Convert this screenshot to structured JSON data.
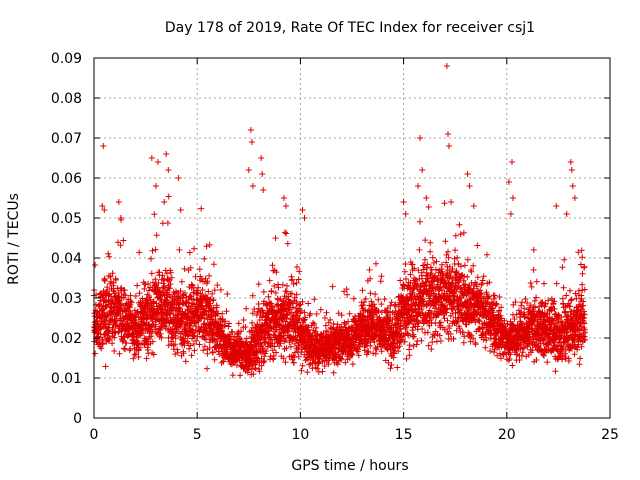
{
  "chart_data": {
    "type": "scatter",
    "title": "Day 178 of 2019, Rate Of TEC Index for receiver csj1",
    "xlabel": "GPS time / hours",
    "ylabel": "ROTI / TECUs",
    "xlim": [
      0,
      25
    ],
    "ylim": [
      0,
      0.09
    ],
    "xticks": [
      "0",
      "5",
      "10",
      "15",
      "20",
      "25"
    ],
    "yticks": [
      "0",
      "0.01",
      "0.02",
      "0.03",
      "0.04",
      "0.05",
      "0.06",
      "0.07",
      "0.08",
      "0.09"
    ],
    "grid": true,
    "marker": "plus",
    "series_color": "#e00000",
    "envelope": {
      "hours": [
        0,
        0.5,
        1,
        1.5,
        2,
        2.5,
        3,
        3.5,
        4,
        4.5,
        5,
        5.5,
        6,
        6.5,
        7,
        7.5,
        8,
        8.5,
        9,
        9.5,
        10,
        10.5,
        11,
        11.5,
        12,
        12.5,
        13,
        13.5,
        14,
        14.5,
        15,
        15.5,
        16,
        16.5,
        17,
        17.5,
        18,
        18.5,
        19,
        19.5,
        20,
        20.5,
        21,
        21.5,
        22,
        22.5,
        23,
        23.5,
        23.8
      ],
      "median_roti": [
        0.022,
        0.026,
        0.027,
        0.025,
        0.022,
        0.024,
        0.027,
        0.028,
        0.025,
        0.024,
        0.027,
        0.026,
        0.021,
        0.018,
        0.016,
        0.016,
        0.02,
        0.023,
        0.024,
        0.025,
        0.021,
        0.018,
        0.017,
        0.018,
        0.019,
        0.02,
        0.022,
        0.023,
        0.021,
        0.02,
        0.026,
        0.028,
        0.03,
        0.028,
        0.03,
        0.031,
        0.028,
        0.027,
        0.025,
        0.022,
        0.019,
        0.02,
        0.022,
        0.023,
        0.022,
        0.021,
        0.022,
        0.024,
        0.025
      ],
      "spread_roti": [
        0.008,
        0.012,
        0.012,
        0.01,
        0.009,
        0.01,
        0.012,
        0.012,
        0.011,
        0.011,
        0.012,
        0.011,
        0.008,
        0.006,
        0.005,
        0.006,
        0.01,
        0.012,
        0.012,
        0.012,
        0.009,
        0.007,
        0.006,
        0.006,
        0.007,
        0.007,
        0.008,
        0.009,
        0.008,
        0.008,
        0.011,
        0.012,
        0.012,
        0.012,
        0.012,
        0.012,
        0.011,
        0.01,
        0.009,
        0.008,
        0.006,
        0.007,
        0.009,
        0.009,
        0.009,
        0.009,
        0.01,
        0.011,
        0.011
      ]
    },
    "outliers": [
      {
        "x": 0.4,
        "y": 0.053
      },
      {
        "x": 0.45,
        "y": 0.068
      },
      {
        "x": 0.5,
        "y": 0.052
      },
      {
        "x": 1.2,
        "y": 0.054
      },
      {
        "x": 1.3,
        "y": 0.05
      },
      {
        "x": 2.8,
        "y": 0.065
      },
      {
        "x": 3.1,
        "y": 0.064
      },
      {
        "x": 3.0,
        "y": 0.058
      },
      {
        "x": 3.5,
        "y": 0.066
      },
      {
        "x": 3.6,
        "y": 0.062
      },
      {
        "x": 3.4,
        "y": 0.054
      },
      {
        "x": 4.1,
        "y": 0.06
      },
      {
        "x": 4.2,
        "y": 0.052
      },
      {
        "x": 7.6,
        "y": 0.072
      },
      {
        "x": 7.65,
        "y": 0.069
      },
      {
        "x": 7.5,
        "y": 0.062
      },
      {
        "x": 7.7,
        "y": 0.058
      },
      {
        "x": 8.1,
        "y": 0.065
      },
      {
        "x": 8.15,
        "y": 0.061
      },
      {
        "x": 8.2,
        "y": 0.057
      },
      {
        "x": 9.2,
        "y": 0.055
      },
      {
        "x": 9.3,
        "y": 0.053
      },
      {
        "x": 10.1,
        "y": 0.052
      },
      {
        "x": 10.2,
        "y": 0.05
      },
      {
        "x": 15.0,
        "y": 0.054
      },
      {
        "x": 15.1,
        "y": 0.051
      },
      {
        "x": 15.8,
        "y": 0.07
      },
      {
        "x": 15.9,
        "y": 0.062
      },
      {
        "x": 15.7,
        "y": 0.058
      },
      {
        "x": 16.1,
        "y": 0.055
      },
      {
        "x": 17.1,
        "y": 0.088
      },
      {
        "x": 17.15,
        "y": 0.071
      },
      {
        "x": 17.2,
        "y": 0.068
      },
      {
        "x": 17.3,
        "y": 0.054
      },
      {
        "x": 18.1,
        "y": 0.061
      },
      {
        "x": 18.2,
        "y": 0.058
      },
      {
        "x": 18.4,
        "y": 0.053
      },
      {
        "x": 20.1,
        "y": 0.059
      },
      {
        "x": 20.25,
        "y": 0.064
      },
      {
        "x": 20.3,
        "y": 0.055
      },
      {
        "x": 20.2,
        "y": 0.051
      },
      {
        "x": 22.4,
        "y": 0.053
      },
      {
        "x": 22.9,
        "y": 0.051
      },
      {
        "x": 23.1,
        "y": 0.064
      },
      {
        "x": 23.15,
        "y": 0.062
      },
      {
        "x": 23.2,
        "y": 0.058
      },
      {
        "x": 23.3,
        "y": 0.055
      }
    ],
    "sample_step_hours": 0.01,
    "points_per_step": 2,
    "seed": 178
  }
}
